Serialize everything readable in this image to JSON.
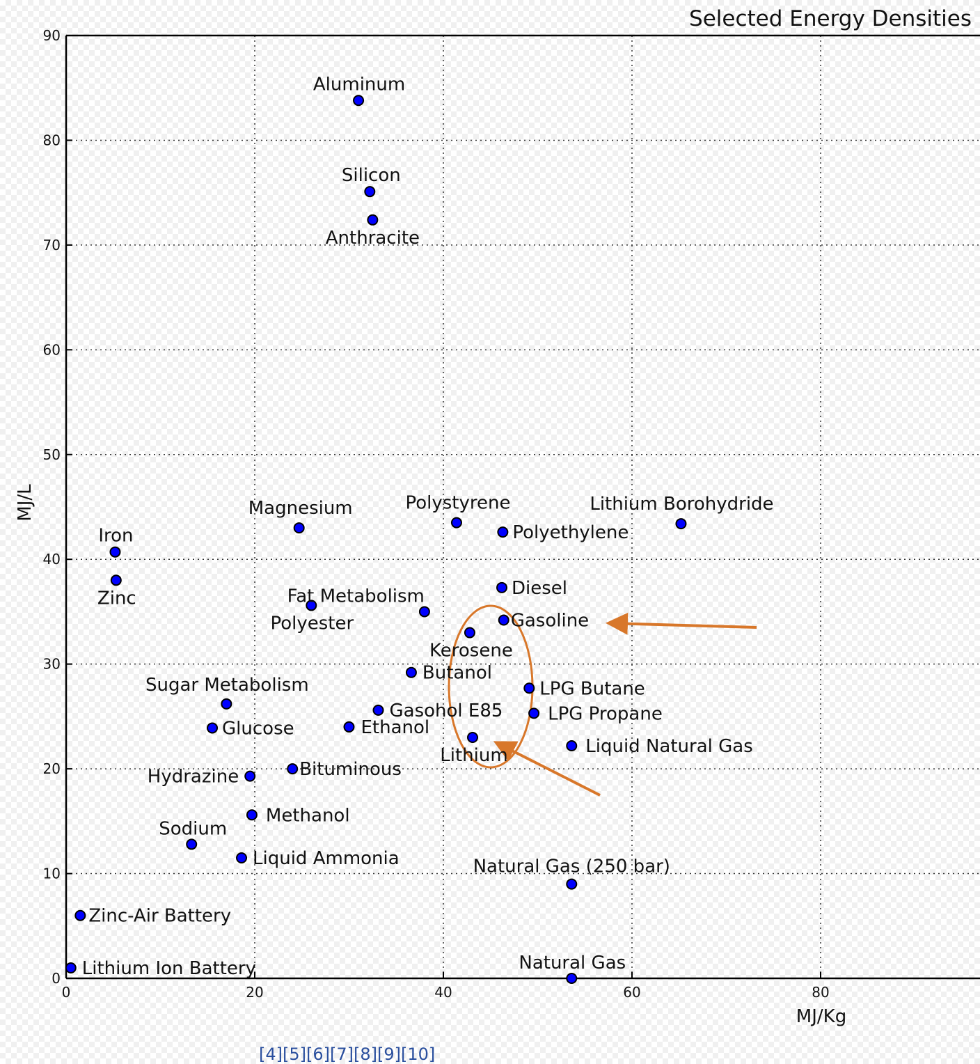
{
  "chart_data": {
    "type": "scatter",
    "title": "Selected Energy Densities",
    "xlabel": "MJ/Kg",
    "ylabel": "MJ/L",
    "xlim": [
      0,
      97
    ],
    "ylim": [
      0,
      90
    ],
    "xticks": [
      "0",
      "20",
      "40",
      "60",
      "80"
    ],
    "yticks": [
      "0",
      "10",
      "20",
      "30",
      "40",
      "50",
      "60",
      "70",
      "80",
      "90"
    ],
    "grid": true,
    "marker_color": "#0000ff",
    "points": [
      {
        "name": "Aluminum",
        "x": 31.0,
        "y": 83.8
      },
      {
        "name": "Silicon",
        "x": 32.2,
        "y": 75.1
      },
      {
        "name": "Anthracite",
        "x": 32.5,
        "y": 72.4
      },
      {
        "name": "Magnesium",
        "x": 24.7,
        "y": 43.0
      },
      {
        "name": "Polystyrene",
        "x": 41.4,
        "y": 43.5
      },
      {
        "name": "Polyethylene",
        "x": 46.3,
        "y": 42.6
      },
      {
        "name": "Lithium Borohydride",
        "x": 65.2,
        "y": 43.4
      },
      {
        "name": "Iron",
        "x": 5.2,
        "y": 40.7
      },
      {
        "name": "Zinc",
        "x": 5.3,
        "y": 38.0
      },
      {
        "name": "Polyester",
        "x": 26.0,
        "y": 35.6
      },
      {
        "name": "Fat Metabolism",
        "x": 38.0,
        "y": 35.0
      },
      {
        "name": "Diesel",
        "x": 46.2,
        "y": 37.3
      },
      {
        "name": "Gasoline",
        "x": 46.4,
        "y": 34.2
      },
      {
        "name": "Kerosene",
        "x": 42.8,
        "y": 33.0
      },
      {
        "name": "Butanol",
        "x": 36.6,
        "y": 29.2
      },
      {
        "name": "LPG Butane",
        "x": 49.1,
        "y": 27.7
      },
      {
        "name": "LPG Propane",
        "x": 49.6,
        "y": 25.3
      },
      {
        "name": "Sugar Metabolism",
        "x": 17.0,
        "y": 26.2
      },
      {
        "name": "Gasohol E85",
        "x": 33.1,
        "y": 25.6
      },
      {
        "name": "Glucose",
        "x": 15.5,
        "y": 23.9
      },
      {
        "name": "Ethanol",
        "x": 30.0,
        "y": 24.0
      },
      {
        "name": "Lithium",
        "x": 43.1,
        "y": 23.0
      },
      {
        "name": "Liquid Natural Gas",
        "x": 53.6,
        "y": 22.2
      },
      {
        "name": "Hydrazine",
        "x": 19.5,
        "y": 19.3
      },
      {
        "name": "Bituminous",
        "x": 24.0,
        "y": 20.0
      },
      {
        "name": "Methanol",
        "x": 19.7,
        "y": 15.6
      },
      {
        "name": "Sodium",
        "x": 13.3,
        "y": 12.8
      },
      {
        "name": "Liquid Ammonia",
        "x": 18.6,
        "y": 11.5
      },
      {
        "name": "Natural Gas (250 bar)",
        "x": 53.6,
        "y": 9.0
      },
      {
        "name": "Zinc-Air Battery",
        "x": 1.5,
        "y": 6.0
      },
      {
        "name": "Lithium Ion Battery",
        "x": 0.5,
        "y": 1.0
      },
      {
        "name": "Natural Gas",
        "x": 53.6,
        "y": 0.0
      }
    ],
    "annotations": [
      {
        "type": "ellipse",
        "color": "#d8772a",
        "encloses": [
          "Gasoline",
          "Kerosene",
          "Butanol",
          "LPG Butane",
          "Gasohol E85",
          "Lithium"
        ]
      },
      {
        "type": "arrow",
        "color": "#d8772a",
        "points_to": "Gasoline"
      },
      {
        "type": "arrow",
        "color": "#d8772a",
        "points_to": "Lithium"
      }
    ]
  },
  "footnote": "[4][5][6][7][8][9][10]"
}
